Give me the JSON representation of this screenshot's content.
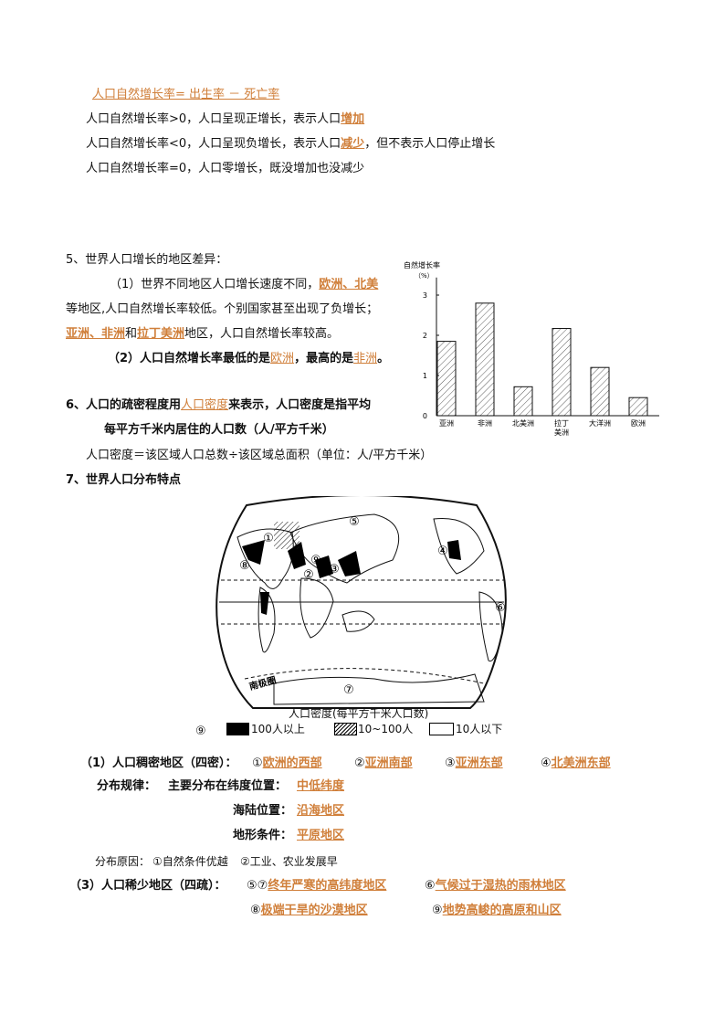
{
  "formula": {
    "text": "人口自然增长率= 出生率 － 死亡率"
  },
  "rate_lines": [
    {
      "pre": "人口自然增长率>0，人口呈现正增长，表示人口",
      "key": "增加",
      "post": ""
    },
    {
      "pre": "人口自然增长率<0，人口呈现负增长，表示人口",
      "key": "减少",
      "post": "，但不表示人口停止增长"
    },
    {
      "pre": "人口自然增长率=0，人口零增长，既没增加也没减少",
      "key": "",
      "post": ""
    }
  ],
  "section5": {
    "heading": "5、世界人口增长的地区差异：",
    "p1_pre": "（1）世界不同地区人口增长速度不同，",
    "p1_key": "欧洲、北美",
    "p1_line2": "等地区,人口自然增长率较低。个别国家甚至出现了负增长；",
    "p1_key2": "亚洲、非洲",
    "p1_and": "和",
    "p1_key3": "拉丁美洲",
    "p1_post": "地区，人口自然增长率较高。",
    "p2_pre": "（2）人口自然增长率最低的是",
    "p2_key1": "欧洲",
    "p2_mid": "，最高的是",
    "p2_key2": "非洲",
    "p2_end": "。"
  },
  "section6": {
    "pre": "6、人口的疏密程度用",
    "key": "人口密度",
    "post": "来表示，人口密度是指平均",
    "line2": "每平方千米内居住的人口数（人/平方千米）",
    "formula": "人口密度＝该区域人口总数÷该区域总面积（单位：人/平方千米）"
  },
  "section7": {
    "heading": "7、世界人口分布特点"
  },
  "chart_data": {
    "type": "bar",
    "ylabel": "自然增长率",
    "yunit": "（%）",
    "categories": [
      "亚洲",
      "非洲",
      "北美洲",
      "拉丁美洲",
      "大洋洲",
      "欧洲"
    ],
    "category_lines": [
      [
        "亚洲"
      ],
      [
        "非洲"
      ],
      [
        "北美洲"
      ],
      [
        "拉丁",
        "美洲"
      ],
      [
        "大洋洲"
      ],
      [
        "欧洲"
      ]
    ],
    "values": [
      1.85,
      2.8,
      0.72,
      2.17,
      1.2,
      0.45
    ],
    "ylim": [
      0,
      3.3
    ],
    "yticks": [
      "0",
      "1",
      "2",
      "3"
    ],
    "bar_fill": "hatched"
  },
  "map": {
    "markers": [
      "①",
      "②",
      "③",
      "④",
      "⑤",
      "⑥",
      "⑦",
      "⑧",
      "⑨"
    ],
    "antarctic_label": "南极圈",
    "legend_title": "人口密度(每平方千米人口数)",
    "legend_prefix": "⑨",
    "legend": [
      {
        "label": "100人以上",
        "fill": "#000000"
      },
      {
        "label": "10~100人",
        "fill": "hatched"
      },
      {
        "label": "10人以下",
        "fill": "#ffffff"
      }
    ]
  },
  "dense": {
    "heading": "（1）人口稠密地区（四密）：",
    "items": [
      {
        "num": "①",
        "text": "欧洲的西部 "
      },
      {
        "num": "②",
        "text": "亚洲南部"
      },
      {
        "num": "③",
        "text": "亚洲东部 "
      },
      {
        "num": "④",
        "text": "北美洲东部"
      }
    ],
    "rule_label": "分布规律：",
    "lat_label": "主要分布在纬度位置：",
    "lat_value": "中低纬度",
    "sea_label": "海陆位置：",
    "sea_value": "沿海地区",
    "terrain_label": "地形条件：",
    "terrain_value": "平原地区",
    "reason_label": "分布原因：",
    "reason1": "①自然条件优越",
    "reason2": "②工业、农业发展早"
  },
  "sparse": {
    "heading": "（3）人口稀少地区（四疏）：",
    "items": [
      {
        "num": "⑤⑦",
        "text": "终年严寒的高纬度地区"
      },
      {
        "num": "⑥",
        "text": "气候过于湿热的雨林地区"
      },
      {
        "num": "⑧",
        "text": "极端干旱的沙漠地区 "
      },
      {
        "num": "⑨",
        "text": "地势高峻的高原和山区"
      }
    ]
  }
}
